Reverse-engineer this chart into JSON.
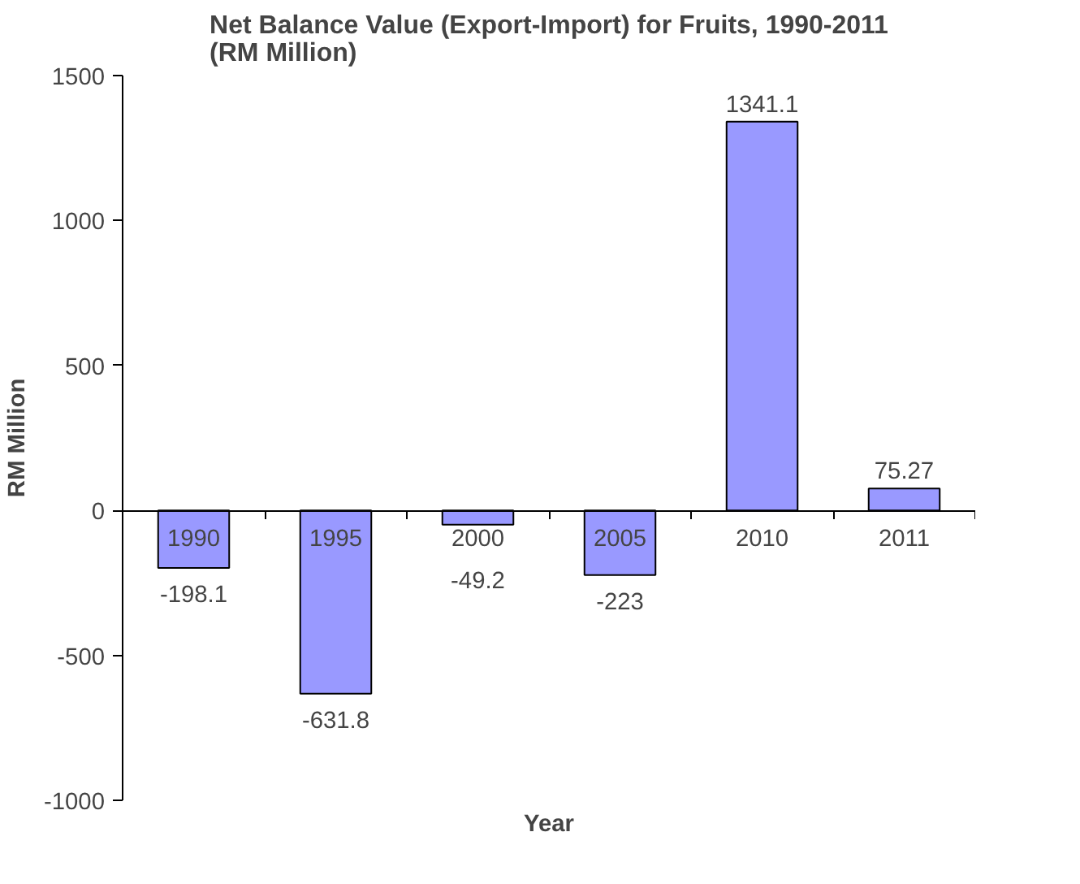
{
  "chart_data": {
    "type": "bar",
    "title": "Net Balance Value (Export-Import) for Fruits, 1990-2011\n(RM Million)",
    "xlabel": "Year",
    "ylabel": "RM Million",
    "categories": [
      "1990",
      "1995",
      "2000",
      "2005",
      "2010",
      "2011"
    ],
    "values": [
      -198.1,
      -631.8,
      -49.2,
      -223,
      1341.1,
      75.27
    ],
    "value_labels": [
      "-198.1",
      "-631.8",
      "-49.2",
      "-223",
      "1341.1",
      "75.27"
    ],
    "color": "#9999ff",
    "ylim": [
      -1000,
      1500
    ],
    "yticks": [
      -1000,
      -500,
      0,
      500,
      1000,
      1500
    ],
    "grid": false
  }
}
